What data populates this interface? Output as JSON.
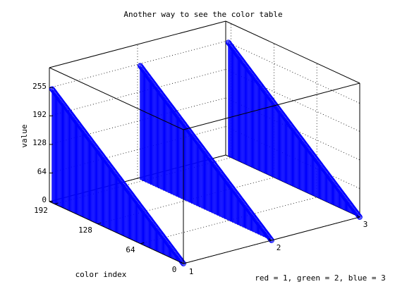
{
  "chart_data": {
    "type": "stem3",
    "title": "Another way to see the color table",
    "xlabel": "color index",
    "ylabel": "",
    "zlabel": "value",
    "annotation": "red = 1, green = 2, blue = 3",
    "x_ticks": [
      "0",
      "64",
      "128",
      "192"
    ],
    "y_ticks": [
      "1",
      "2",
      "3"
    ],
    "z_ticks": [
      "0",
      "64",
      "128",
      "192",
      "255"
    ],
    "xlim": [
      0,
      200
    ],
    "ylim": [
      1,
      3
    ],
    "zlim": [
      0,
      300
    ],
    "grid": true,
    "marker": "circle",
    "colors": {
      "stem": "#0000ff",
      "axes": "#000000",
      "grid": "#000000"
    },
    "series": [
      {
        "channel": 1,
        "index_start": 0,
        "index_end": 196,
        "value_start": 0,
        "value_end": 255
      },
      {
        "channel": 2,
        "index_start": 0,
        "index_end": 196,
        "value_start": 0,
        "value_end": 255
      },
      {
        "channel": 3,
        "index_start": 0,
        "index_end": 196,
        "value_start": 0,
        "value_end": 255
      }
    ]
  }
}
